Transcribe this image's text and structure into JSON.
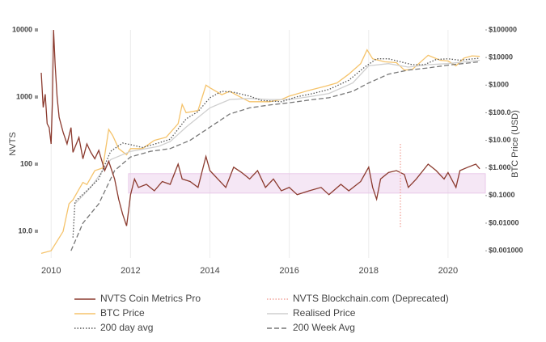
{
  "chart_data": {
    "type": "line",
    "ylabel": "NVTS",
    "y2label": "BTC Price (USD)",
    "xlim": [
      2009.73,
      2020.94
    ],
    "xticks": [
      2010,
      2012,
      2014,
      2016,
      2018,
      2020
    ],
    "ylim": [
      4,
      10000
    ],
    "ylog": true,
    "yticks": [
      {
        "value": 10,
        "label": "10.0"
      },
      100,
      1000,
      10000
    ],
    "y2lim": [
      0.00055,
      100000
    ],
    "y2log": true,
    "y2ticks": [
      {
        "value": 0.001,
        "label": "$0.001000"
      },
      {
        "value": 0.01,
        "label": "$0.01000"
      },
      {
        "value": 0.1,
        "label": "$0.1000"
      },
      {
        "value": 1,
        "label": "$1.000"
      },
      {
        "value": 10,
        "label": "$10.00"
      },
      {
        "value": 100,
        "label": "$100.0"
      },
      {
        "value": 1000,
        "label": "$1000"
      },
      {
        "value": 10000,
        "label": "$10000"
      },
      {
        "value": 100000,
        "label": "$100000"
      }
    ],
    "grid": "x",
    "legend": "bottom",
    "band": {
      "from": 37,
      "to": 72,
      "start": 2011.95,
      "color": "#e9c9e9"
    },
    "series": [
      {
        "name": "NVTS Coin Metrics Pro",
        "color": "#8b3a2e",
        "dash": "solid",
        "axis": "y",
        "x": [
          2009.75,
          2009.8,
          2009.85,
          2009.9,
          2009.95,
          2010.0,
          2010.03,
          2010.06,
          2010.1,
          2010.15,
          2010.2,
          2010.3,
          2010.4,
          2010.5,
          2010.55,
          2010.7,
          2010.8,
          2010.9,
          2011.0,
          2011.1,
          2011.2,
          2011.35,
          2011.45,
          2011.6,
          2011.7,
          2011.8,
          2011.9,
          2011.95,
          2012.0,
          2012.1,
          2012.2,
          2012.4,
          2012.6,
          2012.8,
          2013.0,
          2013.2,
          2013.3,
          2013.5,
          2013.7,
          2013.9,
          2014.0,
          2014.2,
          2014.4,
          2014.6,
          2014.8,
          2015.0,
          2015.2,
          2015.4,
          2015.6,
          2015.8,
          2016.0,
          2016.2,
          2016.5,
          2016.8,
          2017.0,
          2017.3,
          2017.5,
          2017.8,
          2018.0,
          2018.1,
          2018.2,
          2018.3,
          2018.5,
          2018.7,
          2018.9,
          2019.0,
          2019.2,
          2019.5,
          2019.7,
          2019.9,
          2020.0,
          2020.2,
          2020.3,
          2020.5,
          2020.7,
          2020.8
        ],
        "values": [
          2300,
          700,
          1100,
          400,
          350,
          200,
          800,
          10000,
          3000,
          1000,
          500,
          300,
          200,
          350,
          150,
          250,
          120,
          200,
          150,
          120,
          160,
          80,
          110,
          60,
          30,
          18,
          12,
          20,
          35,
          60,
          45,
          50,
          40,
          55,
          50,
          100,
          60,
          55,
          45,
          130,
          80,
          60,
          45,
          90,
          75,
          60,
          80,
          45,
          60,
          40,
          45,
          35,
          40,
          45,
          35,
          50,
          40,
          55,
          90,
          45,
          30,
          60,
          75,
          80,
          70,
          45,
          60,
          100,
          80,
          60,
          75,
          45,
          80,
          90,
          100,
          85
        ]
      },
      {
        "name": "NVTS Blockchain.com (Deprecated)",
        "color": "#f2a49c",
        "dash": "dotted",
        "axis": "y",
        "x": [
          2018.8,
          2018.8
        ],
        "values": [
          200,
          11
        ]
      },
      {
        "name": "BTC Price",
        "color": "#f5c36b",
        "dash": "solid",
        "axis": "y2",
        "x": [
          2009.75,
          2010.0,
          2010.3,
          2010.45,
          2010.55,
          2010.8,
          2010.9,
          2011.1,
          2011.3,
          2011.45,
          2011.55,
          2011.7,
          2011.9,
          2012.0,
          2012.3,
          2012.6,
          2012.9,
          2013.2,
          2013.3,
          2013.4,
          2013.7,
          2013.9,
          2014.0,
          2014.3,
          2014.5,
          2014.8,
          2015.0,
          2015.5,
          2015.8,
          2016.0,
          2016.5,
          2016.9,
          2017.2,
          2017.5,
          2017.8,
          2017.96,
          2018.1,
          2018.4,
          2018.7,
          2018.9,
          2019.1,
          2019.4,
          2019.5,
          2019.8,
          2020.0,
          2020.2,
          2020.4,
          2020.6,
          2020.8
        ],
        "values": [
          0.0008,
          0.001,
          0.005,
          0.05,
          0.07,
          0.3,
          0.25,
          0.8,
          1,
          25,
          15,
          5,
          3,
          5,
          5,
          10,
          13,
          40,
          200,
          100,
          120,
          1000,
          800,
          450,
          600,
          350,
          250,
          250,
          300,
          400,
          650,
          900,
          1200,
          2500,
          6000,
          19000,
          9000,
          7000,
          6500,
          3500,
          3700,
          9000,
          12000,
          8000,
          7500,
          5000,
          9500,
          11500,
          11000
        ]
      },
      {
        "name": "Realised Price",
        "color": "#cfcfcf",
        "dash": "solid",
        "axis": "y2",
        "x": [
          2010.6,
          2011.0,
          2011.5,
          2012.0,
          2012.7,
          2013.0,
          2013.4,
          2014.0,
          2014.5,
          2015.0,
          2015.5,
          2016.0,
          2016.6,
          2017.0,
          2017.6,
          2018.0,
          2018.5,
          2019.0,
          2019.5,
          2020.0,
          2020.8
        ],
        "values": [
          0.05,
          0.2,
          2,
          4,
          6,
          9,
          30,
          150,
          300,
          330,
          300,
          300,
          400,
          500,
          1200,
          5000,
          6000,
          4500,
          5500,
          6000,
          8000
        ]
      },
      {
        "name": "200 day avg",
        "color": "#555555",
        "dash": "dotted",
        "axis": "y2",
        "x": [
          2010.55,
          2010.6,
          2010.9,
          2011.2,
          2011.5,
          2011.8,
          2012.0,
          2012.3,
          2012.7,
          2013.0,
          2013.4,
          2013.7,
          2014.0,
          2014.3,
          2014.6,
          2015.0,
          2015.3,
          2015.8,
          2016.2,
          2016.6,
          2017.0,
          2017.5,
          2017.9,
          2018.2,
          2018.5,
          2018.8,
          2019.1,
          2019.4,
          2019.7,
          2020.0,
          2020.3,
          2020.8
        ],
        "values": [
          0.003,
          0.06,
          0.15,
          0.4,
          4,
          8,
          7,
          5.5,
          8,
          11,
          60,
          110,
          350,
          600,
          550,
          400,
          280,
          250,
          380,
          500,
          700,
          1500,
          4500,
          9000,
          9000,
          7000,
          5500,
          5500,
          8500,
          9000,
          8000,
          9500
        ]
      },
      {
        "name": "200 Week Avg",
        "color": "#777777",
        "dash": "dashed",
        "axis": "y2",
        "x": [
          2010.5,
          2010.8,
          2011.2,
          2011.6,
          2012.0,
          2012.5,
          2013.0,
          2013.5,
          2014.0,
          2014.5,
          2015.0,
          2015.5,
          2016.0,
          2016.6,
          2017.0,
          2017.6,
          2018.0,
          2018.5,
          2019.0,
          2019.5,
          2020.0,
          2020.8
        ],
        "values": [
          0.001,
          0.01,
          0.05,
          0.8,
          2.5,
          4,
          5,
          10,
          30,
          90,
          150,
          190,
          230,
          300,
          350,
          600,
          1200,
          2500,
          3500,
          4200,
          5300,
          7000
        ]
      }
    ]
  }
}
